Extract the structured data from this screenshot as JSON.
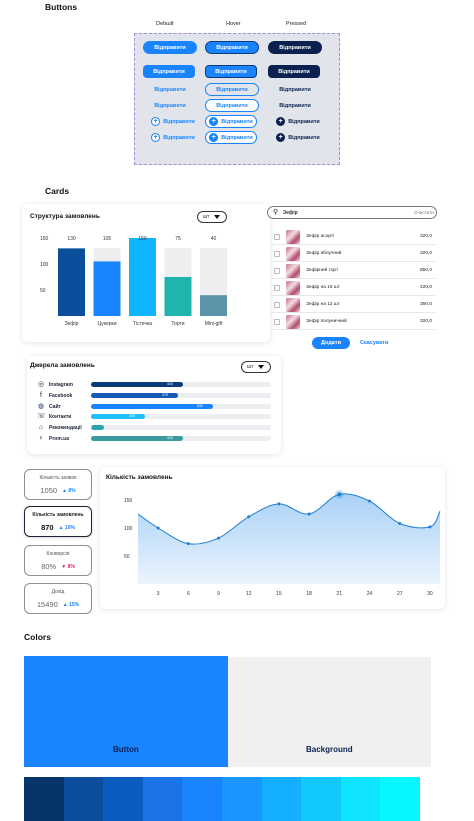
{
  "sections": {
    "buttons": "Buttons",
    "cards": "Cards",
    "colors": "Colors"
  },
  "buttons_panel": {
    "columns": [
      "Default",
      "Hover",
      "Pressed"
    ],
    "label": "Відправити",
    "plus_glyph": "+"
  },
  "order_structure": {
    "title": "Структура замовлень",
    "unit_select": "шт",
    "yticks": [
      "150",
      "100",
      "50"
    ],
    "bars": [
      {
        "category": "Зефір",
        "value": 130,
        "color": "#0b4f9c"
      },
      {
        "category": "Цукерки",
        "value": 105,
        "color": "#1a84ff"
      },
      {
        "category": "Тістечка",
        "value": 150,
        "color": "#0fb5ff"
      },
      {
        "category": "Торти",
        "value": 75,
        "color": "#1fb5ae"
      },
      {
        "category": "Mini-gift",
        "value": 40,
        "color": "#5b94a8"
      }
    ],
    "value_labels": [
      "130",
      "105",
      "150",
      "75",
      "40"
    ]
  },
  "product_search": {
    "query": "Зефір",
    "clear_label": "Очистити",
    "products": [
      {
        "name": "Зефір асорті",
        "price": "320,0"
      },
      {
        "name": "Зефір яблучний",
        "price": "320,0"
      },
      {
        "name": "Зефірний торт",
        "price": "850,0"
      },
      {
        "name": "Зефір на 16 шт",
        "price": "420,0"
      },
      {
        "name": "Зефір на 12 шт",
        "price": "350,0"
      },
      {
        "name": "Зефір полуничний",
        "price": "320,0"
      }
    ],
    "add_label": "Додати",
    "cancel_label": "Скасувати"
  },
  "order_sources": {
    "title": "Джерела замовлень",
    "unit_select": "шт",
    "sources": [
      {
        "name": "Instagram",
        "icon": "instagram-icon",
        "glyph": "◎",
        "value": 400,
        "label": "400",
        "color": "#0b3c7a"
      },
      {
        "name": "Facebook",
        "icon": "facebook-icon",
        "glyph": "f",
        "value": 375,
        "label": "375",
        "color": "#1458b8"
      },
      {
        "name": "Сайт",
        "icon": "globe-icon",
        "glyph": "◍",
        "value": 530,
        "label": "530",
        "color": "#1a84ff"
      },
      {
        "name": "Контакти",
        "icon": "contacts-icon",
        "glyph": "☏",
        "value": 235,
        "label": "235",
        "color": "#1ec0ff"
      },
      {
        "name": "Рекомендації",
        "icon": "recommendations-icon",
        "glyph": "⌂",
        "value": 55,
        "label": "55",
        "color": "#2aa6b0"
      },
      {
        "name": "Prom.ua",
        "icon": "prom-icon",
        "glyph": "♀",
        "value": 400,
        "label": "400",
        "color": "#3a9aa0"
      }
    ],
    "max": 780
  },
  "kpis": [
    {
      "label": "Кількість заявок",
      "value": "1050",
      "delta": "8%",
      "direction": "up",
      "active": false
    },
    {
      "label": "Кількість замовлень",
      "value": "870",
      "delta": "10%",
      "direction": "up",
      "active": true
    },
    {
      "label": "Конверсія",
      "value": "80%",
      "delta": "8%",
      "direction": "down",
      "active": false
    },
    {
      "label": "Дохід",
      "value": "15490",
      "delta": "15%",
      "direction": "up",
      "active": false
    }
  ],
  "orders_chart": {
    "title": "Кількість замовлень",
    "yticks": [
      "150",
      "100",
      "50"
    ],
    "xticks": [
      "3",
      "6",
      "9",
      "12",
      "15",
      "18",
      "21",
      "24",
      "27",
      "30"
    ]
  },
  "chart_data": [
    {
      "type": "bar",
      "title": "Структура замовлень",
      "categories": [
        "Зефір",
        "Цукерки",
        "Тістечка",
        "Торти",
        "Mini-gift"
      ],
      "values": [
        130,
        105,
        150,
        75,
        40
      ],
      "ylim": [
        0,
        175
      ],
      "grid": false
    },
    {
      "type": "area",
      "title": "Кількість замовлень",
      "x": [
        1,
        3,
        6,
        9,
        12,
        15,
        18,
        21,
        24,
        27,
        30,
        31
      ],
      "y": [
        125,
        100,
        72,
        82,
        120,
        143,
        125,
        160,
        148,
        108,
        102,
        130
      ],
      "xticks": [
        3,
        6,
        9,
        12,
        15,
        18,
        21,
        24,
        27,
        30
      ],
      "ylim": [
        0,
        175
      ],
      "grid": false
    }
  ],
  "palette": {
    "button": {
      "label": "Button",
      "color": "#1a84ff"
    },
    "background": {
      "label": "Background",
      "color": "#f0f0f0"
    },
    "scale": [
      "#06346b",
      "#0b4f9c",
      "#0b5cc0",
      "#1a74e8",
      "#1a84ff",
      "#1996ff",
      "#14b0ff",
      "#12c8ff",
      "#0ee3ff",
      "#05f6ff"
    ]
  }
}
